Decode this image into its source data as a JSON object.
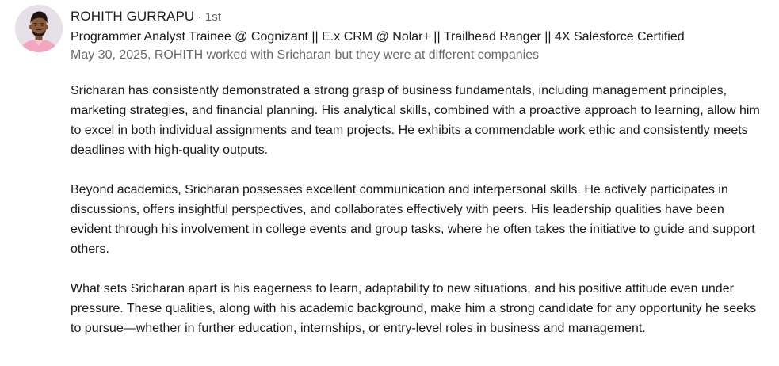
{
  "recommender": {
    "name": "ROHITH GURRAPU",
    "degree_separator": "·",
    "degree": "1st",
    "headline": "Programmer Analyst Trainee @ Cognizant || E.x CRM @ Nolar+ || Trailhead Ranger || 4X Salesforce Certified",
    "meta": "May 30, 2025, ROHITH worked with Sricharan but they were at different companies",
    "avatar_icon": "profile-photo"
  },
  "recommendation": {
    "paragraphs": [
      "Sricharan has consistently demonstrated a strong grasp of business fundamentals, including management principles, marketing strategies, and financial planning. His analytical skills, combined with a proactive approach to learning, allow him to excel in both individual assignments and team projects. He exhibits a commendable work ethic and consistently meets deadlines with high-quality outputs.",
      "Beyond academics, Sricharan possesses excellent communication and interpersonal skills. He actively participates in discussions, offers insightful perspectives, and collaborates effectively with peers. His leadership qualities have been evident through his involvement in college events and group tasks, where he often takes the initiative to guide and support others.",
      "What sets Sricharan apart is his eagerness to learn, adaptability to new situations, and his positive attitude even under pressure. These qualities, along with his academic background, make him a strong candidate for any opportunity he seeks to pursue—whether in further education, internships, or entry-level roles in business and management."
    ]
  },
  "colors": {
    "text_primary": "#191919",
    "text_secondary": "#666666",
    "background": "#ffffff",
    "shirt": "#f2a7c0",
    "skin": "#8a5a3c",
    "hair": "#1d1410"
  }
}
